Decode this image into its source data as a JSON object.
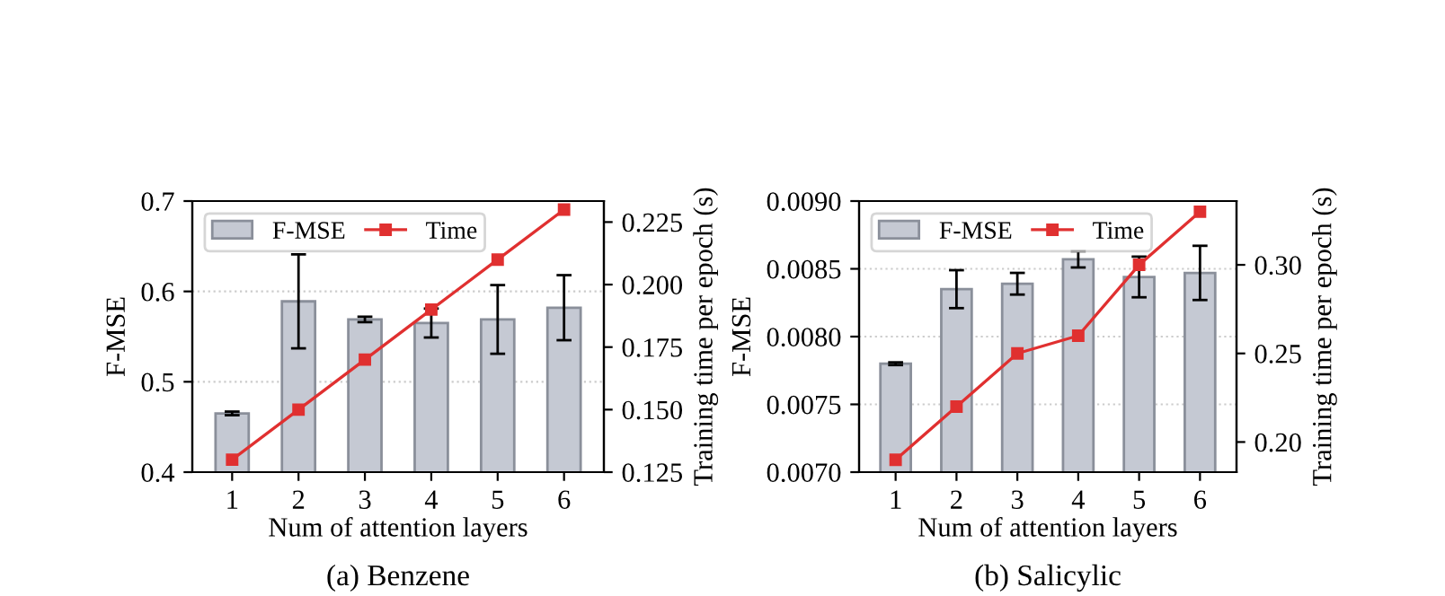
{
  "chart_data": [
    {
      "type": "bar",
      "categories": [
        "1",
        "2",
        "3",
        "4",
        "5",
        "6"
      ],
      "xlabel": "Num of attention layers",
      "ylabel": "F-MSE",
      "y2label": "Training time per epoch (s)",
      "annotations": [
        "(a) Benzene"
      ],
      "series": [
        {
          "name": "F-MSE",
          "color": "#c5c9d3",
          "values": [
            0.465,
            0.589,
            0.569,
            0.565,
            0.569,
            0.582
          ],
          "errors": [
            0.002,
            0.052,
            0.003,
            0.016,
            0.038,
            0.036
          ]
        },
        {
          "name": "Time",
          "type": "line",
          "axis": "y2",
          "color": "#e03030",
          "values": [
            0.13,
            0.15,
            0.17,
            0.19,
            0.21,
            0.23
          ]
        }
      ],
      "ylim": [
        0.4,
        0.7
      ],
      "yticks": [
        0.4,
        0.5,
        0.6,
        0.7
      ],
      "y2lim": [
        0.125,
        0.2334
      ],
      "y2ticks": [
        {
          "value": 0.125,
          "label": "0.125"
        },
        {
          "value": 0.15,
          "label": "0.150"
        },
        {
          "value": 0.175,
          "label": "0.175"
        },
        {
          "value": 0.2,
          "label": "0.200"
        },
        {
          "value": 0.225,
          "label": "0.225"
        }
      ],
      "grid": "y",
      "legend": "top left",
      "marker": "square",
      "line_style": "solid"
    },
    {
      "type": "bar",
      "categories": [
        "1",
        "2",
        "3",
        "4",
        "5",
        "6"
      ],
      "xlabel": "Num of attention layers",
      "ylabel": "F-MSE",
      "y2label": "Training time per epoch (s)",
      "annotations": [
        "(b) Salicylic"
      ],
      "series": [
        {
          "name": "F-MSE",
          "color": "#c5c9d3",
          "values": [
            0.0078,
            0.00835,
            0.00839,
            0.00857,
            0.00844,
            0.00847
          ],
          "errors": [
            1e-05,
            0.00014,
            8e-05,
            6e-05,
            0.00015,
            0.0002
          ]
        },
        {
          "name": "Time",
          "type": "line",
          "axis": "y2",
          "color": "#e03030",
          "values": [
            0.19,
            0.22,
            0.25,
            0.26,
            0.3,
            0.33
          ]
        }
      ],
      "ylim": [
        0.007,
        0.009
      ],
      "yticks": [
        {
          "value": 0.007,
          "label": "0.0070"
        },
        {
          "value": 0.0075,
          "label": "0.0075"
        },
        {
          "value": 0.008,
          "label": "0.0080"
        },
        {
          "value": 0.0085,
          "label": "0.0085"
        },
        {
          "value": 0.009,
          "label": "0.0090"
        }
      ],
      "y2lim": [
        0.183,
        0.336
      ],
      "y2ticks": [
        {
          "value": 0.2,
          "label": "0.20"
        },
        {
          "value": 0.25,
          "label": "0.25"
        },
        {
          "value": 0.3,
          "label": "0.30"
        }
      ],
      "grid": "y",
      "legend": "top left",
      "marker": "square",
      "line_style": "solid"
    }
  ]
}
